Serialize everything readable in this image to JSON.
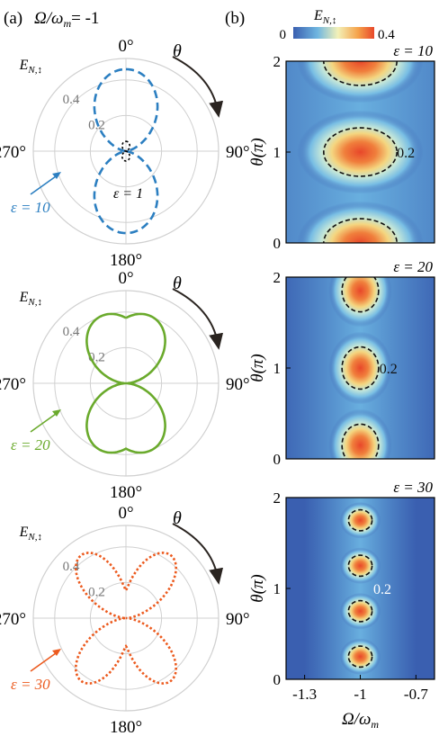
{
  "colors": {
    "blue": "#2c7fc1",
    "green": "#6aaa2c",
    "orange": "#ec5a1e",
    "black": "#000000",
    "ring": "#d0d0d0",
    "arrow": "#2a2420",
    "tick_gray": "#777777",
    "heat_low": "#3a5fb0",
    "heat_high": "#e8472a"
  },
  "panel_a": {
    "label": "(a)",
    "condition": "Ω/ωm = -1",
    "cond_lhs": "Ω/ω",
    "cond_sub": "m",
    "cond_rhs": "= -1",
    "ylabel_main": "E",
    "ylabel_sub": "N,↕"
  },
  "panel_b": {
    "label": "(b)",
    "colorbar": {
      "min_label": "0",
      "max_label": "0.4",
      "label_main": "E",
      "label_sub": "N,↕"
    }
  },
  "chart_data": [
    {
      "type": "polar",
      "panel": "a-top",
      "angle_labels": [
        "0°",
        "90°",
        "180°",
        "270°"
      ],
      "radial_ticks": [
        0.2,
        0.4
      ],
      "radial_tick_labels": [
        "0.2",
        "0.4"
      ],
      "rmax": 0.52,
      "angle_direction": "clockwise",
      "angle_symbol": "θ",
      "series": [
        {
          "name": "ε = 10",
          "eps": 10,
          "style": "dashed",
          "color": "#2c7fc1",
          "r_max": 0.46,
          "r_min": 0.0,
          "shape": "cos2"
        },
        {
          "name": "ε = 1",
          "eps": 1,
          "style": "dotted",
          "color": "#000000",
          "r_max": 0.055,
          "r_min": 0.0,
          "shape": "cos2"
        }
      ],
      "labels": [
        "ε = 10",
        "ε = 1"
      ]
    },
    {
      "type": "polar",
      "panel": "a-middle",
      "angle_labels": [
        "0°",
        "90°",
        "180°",
        "270°"
      ],
      "radial_ticks": [
        0.2,
        0.4
      ],
      "radial_tick_labels": [
        "0.2",
        "0.4"
      ],
      "rmax": 0.52,
      "angle_direction": "clockwise",
      "angle_symbol": "θ",
      "series": [
        {
          "name": "ε = 20",
          "eps": 20,
          "style": "solid",
          "color": "#6aaa2c",
          "r_max": 0.47,
          "r_min": 0.0,
          "shape": "double"
        }
      ],
      "labels": [
        "ε = 20"
      ]
    },
    {
      "type": "polar",
      "panel": "a-bottom",
      "angle_labels": [
        "0°",
        "90°",
        "180°",
        "270°"
      ],
      "radial_ticks": [
        0.2,
        0.4
      ],
      "radial_tick_labels": [
        "0.2",
        "0.4"
      ],
      "rmax": 0.52,
      "angle_direction": "clockwise",
      "angle_symbol": "θ",
      "series": [
        {
          "name": "ε = 30",
          "eps": 30,
          "style": "dotted",
          "color": "#ec5a1e",
          "r_max": 0.45,
          "r_min": 0.0,
          "shape": "butterfly"
        }
      ],
      "labels": [
        "ε = 30"
      ]
    },
    {
      "type": "heatmap",
      "panel": "b-top",
      "title": "ε = 10",
      "xlim": [
        -1.4,
        -0.6
      ],
      "ylim": [
        0,
        2
      ],
      "y_ticks": [
        0,
        1,
        2
      ],
      "y_tick_labels": [
        "0",
        "1",
        "2"
      ],
      "ylabel": "θ(π)",
      "contour_level": 0.2,
      "contour_label": "0.2",
      "blob_center_x": -1.0,
      "blob_width": 0.17,
      "blob_height": 0.23,
      "centers_y": [
        0,
        1,
        2
      ]
    },
    {
      "type": "heatmap",
      "panel": "b-middle",
      "title": "ε = 20",
      "xlim": [
        -1.4,
        -0.6
      ],
      "ylim": [
        0,
        2
      ],
      "y_ticks": [
        0,
        1,
        2
      ],
      "y_tick_labels": [
        "0",
        "1",
        "2"
      ],
      "ylabel": "θ(π)",
      "contour_level": 0.2,
      "contour_label": "0.2",
      "blob_center_x": -1.0,
      "blob_width": 0.085,
      "blob_height": 0.2,
      "centers_y": [
        0.15,
        1,
        1.85
      ]
    },
    {
      "type": "heatmap",
      "panel": "b-bottom",
      "title": "ε = 30",
      "xlim": [
        -1.4,
        -0.6
      ],
      "ylim": [
        0,
        2
      ],
      "y_ticks": [
        0,
        1,
        2
      ],
      "y_tick_labels": [
        "0",
        "1",
        "2"
      ],
      "x_ticks": [
        -1.3,
        -1,
        -0.7
      ],
      "x_tick_labels": [
        "-1.3",
        "-1",
        "-0.7"
      ],
      "xlabel": "Ω/ωm",
      "xlabel_main": "Ω/ω",
      "xlabel_sub": "m",
      "ylabel": "θ(π)",
      "contour_level": 0.2,
      "contour_label": "0.2",
      "blob_center_x": -1.0,
      "blob_width": 0.055,
      "blob_height": 0.1,
      "centers_y": [
        0.25,
        0.75,
        1.25,
        1.75
      ]
    }
  ]
}
